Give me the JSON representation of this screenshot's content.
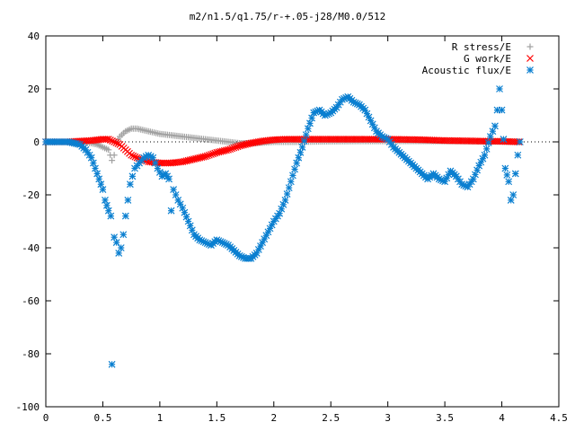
{
  "chart_data": {
    "type": "scatter",
    "title": "m2/n1.5/q1.75/r-+.05-j28/M0.0/512",
    "xlabel": "",
    "ylabel": "",
    "xlim": [
      0,
      4.5
    ],
    "ylim": [
      -100,
      40
    ],
    "x_ticks": [
      "0",
      "0.5",
      "1",
      "1.5",
      "2",
      "2.5",
      "3",
      "3.5",
      "4",
      "4.5"
    ],
    "y_ticks": [
      "40",
      "20",
      "0",
      "-20",
      "-40",
      "-60",
      "-80",
      "-100"
    ],
    "grid": false,
    "legend_position": "top-right",
    "series": [
      {
        "name": "R stress/E",
        "marker": "plus",
        "color": "#a0a0a0",
        "points": [
          [
            0,
            0
          ],
          [
            0.1,
            0
          ],
          [
            0.2,
            0
          ],
          [
            0.3,
            0
          ],
          [
            0.4,
            -0.5
          ],
          [
            0.45,
            -1
          ],
          [
            0.5,
            -2
          ],
          [
            0.55,
            -3
          ],
          [
            0.58,
            -7
          ],
          [
            0.6,
            -5
          ],
          [
            0.62,
            0
          ],
          [
            0.65,
            2
          ],
          [
            0.7,
            4
          ],
          [
            0.75,
            5
          ],
          [
            0.8,
            5
          ],
          [
            0.9,
            4
          ],
          [
            1.0,
            3
          ],
          [
            1.1,
            2.5
          ],
          [
            1.2,
            2
          ],
          [
            1.3,
            1.5
          ],
          [
            1.4,
            1
          ],
          [
            1.5,
            0.5
          ],
          [
            1.6,
            0
          ],
          [
            1.7,
            -0.5
          ],
          [
            1.8,
            -0.5
          ],
          [
            1.9,
            -0.3
          ],
          [
            2.0,
            0
          ],
          [
            2.2,
            0
          ],
          [
            2.5,
            0.2
          ],
          [
            2.8,
            0.3
          ],
          [
            3.0,
            0.3
          ],
          [
            3.3,
            0.3
          ],
          [
            3.5,
            0.3
          ],
          [
            3.8,
            0.2
          ],
          [
            4.0,
            0.1
          ],
          [
            4.15,
            0
          ]
        ]
      },
      {
        "name": "G work/E",
        "marker": "cross",
        "color": "#ff0000",
        "points": [
          [
            0,
            0
          ],
          [
            0.2,
            0
          ],
          [
            0.3,
            0.3
          ],
          [
            0.4,
            0.5
          ],
          [
            0.5,
            1
          ],
          [
            0.55,
            1
          ],
          [
            0.6,
            0
          ],
          [
            0.65,
            -1
          ],
          [
            0.7,
            -3
          ],
          [
            0.75,
            -5
          ],
          [
            0.8,
            -6
          ],
          [
            0.9,
            -7.5
          ],
          [
            1.0,
            -8
          ],
          [
            1.1,
            -8
          ],
          [
            1.2,
            -7.5
          ],
          [
            1.3,
            -6.5
          ],
          [
            1.4,
            -5.5
          ],
          [
            1.5,
            -4
          ],
          [
            1.6,
            -3
          ],
          [
            1.7,
            -1.5
          ],
          [
            1.8,
            -0.5
          ],
          [
            1.9,
            0.3
          ],
          [
            2.0,
            0.8
          ],
          [
            2.1,
            1
          ],
          [
            2.2,
            1
          ],
          [
            2.5,
            1
          ],
          [
            2.8,
            1
          ],
          [
            3.0,
            1
          ],
          [
            3.3,
            0.8
          ],
          [
            3.5,
            0.5
          ],
          [
            3.8,
            0.3
          ],
          [
            4.0,
            0.2
          ],
          [
            4.15,
            0
          ]
        ]
      },
      {
        "name": "Acoustic flux/E",
        "marker": "star",
        "color": "#0a7fd0",
        "points": [
          [
            0,
            0
          ],
          [
            0.1,
            0
          ],
          [
            0.2,
            0
          ],
          [
            0.3,
            -1
          ],
          [
            0.35,
            -3
          ],
          [
            0.4,
            -6
          ],
          [
            0.45,
            -12
          ],
          [
            0.5,
            -18
          ],
          [
            0.52,
            -22
          ],
          [
            0.55,
            -26
          ],
          [
            0.57,
            -28
          ],
          [
            0.58,
            -84
          ],
          [
            0.6,
            -36
          ],
          [
            0.62,
            -38
          ],
          [
            0.64,
            -42
          ],
          [
            0.66,
            -40
          ],
          [
            0.68,
            -35
          ],
          [
            0.7,
            -28
          ],
          [
            0.72,
            -22
          ],
          [
            0.74,
            -16
          ],
          [
            0.78,
            -10
          ],
          [
            0.82,
            -8
          ],
          [
            0.86,
            -6
          ],
          [
            0.9,
            -5
          ],
          [
            0.94,
            -6
          ],
          [
            0.98,
            -10
          ],
          [
            1.02,
            -13
          ],
          [
            1.05,
            -12
          ],
          [
            1.08,
            -14
          ],
          [
            1.1,
            -26
          ],
          [
            1.12,
            -18
          ],
          [
            1.16,
            -22
          ],
          [
            1.2,
            -25
          ],
          [
            1.25,
            -30
          ],
          [
            1.3,
            -35
          ],
          [
            1.35,
            -37
          ],
          [
            1.4,
            -38
          ],
          [
            1.45,
            -39
          ],
          [
            1.5,
            -37
          ],
          [
            1.55,
            -38
          ],
          [
            1.6,
            -39
          ],
          [
            1.65,
            -41
          ],
          [
            1.7,
            -43
          ],
          [
            1.75,
            -44
          ],
          [
            1.8,
            -44
          ],
          [
            1.85,
            -42
          ],
          [
            1.9,
            -38
          ],
          [
            1.95,
            -34
          ],
          [
            2.0,
            -30
          ],
          [
            2.05,
            -27
          ],
          [
            2.1,
            -22
          ],
          [
            2.15,
            -15
          ],
          [
            2.2,
            -8
          ],
          [
            2.25,
            -2
          ],
          [
            2.3,
            5
          ],
          [
            2.35,
            11
          ],
          [
            2.4,
            12
          ],
          [
            2.45,
            10
          ],
          [
            2.5,
            11
          ],
          [
            2.55,
            13
          ],
          [
            2.6,
            16
          ],
          [
            2.65,
            17
          ],
          [
            2.7,
            15
          ],
          [
            2.75,
            14
          ],
          [
            2.8,
            12
          ],
          [
            2.85,
            8
          ],
          [
            2.9,
            4
          ],
          [
            2.95,
            2
          ],
          [
            3.0,
            1
          ],
          [
            3.05,
            -2
          ],
          [
            3.1,
            -4
          ],
          [
            3.15,
            -6
          ],
          [
            3.2,
            -8
          ],
          [
            3.25,
            -10
          ],
          [
            3.3,
            -12
          ],
          [
            3.35,
            -14
          ],
          [
            3.4,
            -12
          ],
          [
            3.45,
            -14
          ],
          [
            3.5,
            -15
          ],
          [
            3.55,
            -11
          ],
          [
            3.6,
            -13
          ],
          [
            3.65,
            -16
          ],
          [
            3.7,
            -17
          ],
          [
            3.75,
            -14
          ],
          [
            3.8,
            -9
          ],
          [
            3.85,
            -5
          ],
          [
            3.9,
            2
          ],
          [
            3.94,
            6
          ],
          [
            3.96,
            12
          ],
          [
            3.98,
            20
          ],
          [
            4.0,
            12
          ],
          [
            4.03,
            -10
          ],
          [
            4.06,
            -15
          ],
          [
            4.08,
            -22
          ],
          [
            4.1,
            -20
          ],
          [
            4.12,
            -12
          ],
          [
            4.14,
            -5
          ],
          [
            4.16,
            0
          ]
        ]
      }
    ]
  }
}
